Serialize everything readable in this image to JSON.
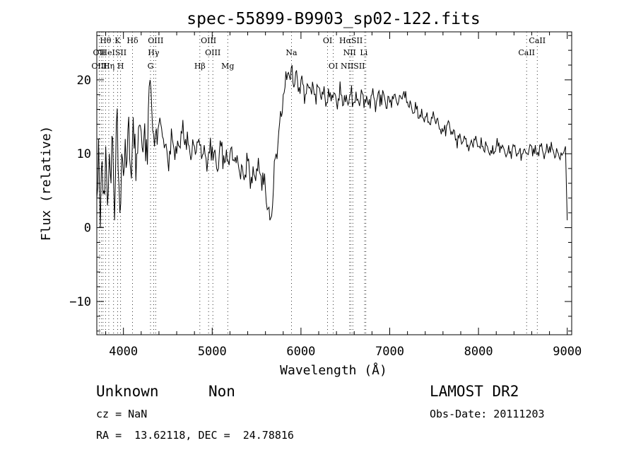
{
  "chart_data": {
    "type": "line",
    "title": "spec-55899-B9903_sp02-122.fits",
    "xlabel": "Wavelength (Å)",
    "ylabel": "Flux (relative)",
    "xlim": [
      3700,
      9050
    ],
    "ylim": [
      -14.5,
      26.5
    ],
    "xticks": [
      4000,
      5000,
      6000,
      7000,
      8000,
      9000
    ],
    "yticks": [
      -10,
      0,
      10,
      20
    ],
    "grid": false,
    "series": [
      {
        "x": [
          3700,
          3720,
          3740,
          3760,
          3780,
          3800,
          3820,
          3840,
          3860,
          3880,
          3900,
          3920,
          3940,
          3960,
          3980,
          4000,
          4020,
          4040,
          4060,
          4080,
          4100,
          4150,
          4200,
          4250,
          4300,
          4350,
          4400,
          4450,
          4500,
          4550,
          4600,
          4650,
          4700,
          4750,
          4800,
          4850,
          4900,
          4950,
          5000,
          5050,
          5100,
          5150,
          5200,
          5250,
          5300,
          5350,
          5400,
          5450,
          5500,
          5550,
          5600,
          5650,
          5680,
          5700,
          5720,
          5750,
          5780,
          5800,
          5820,
          5840,
          5860,
          5880,
          5900,
          5920,
          5940,
          5960,
          5980,
          6000,
          6050,
          6100,
          6150,
          6200,
          6250,
          6300,
          6350,
          6400,
          6450,
          6500,
          6550,
          6600,
          6650,
          6700,
          6750,
          6800,
          6850,
          6900,
          6950,
          7000,
          7050,
          7100,
          7150,
          7200,
          7250,
          7300,
          7350,
          7400,
          7450,
          7500,
          7550,
          7600,
          7650,
          7700,
          7750,
          7800,
          7850,
          7900,
          7950,
          8000,
          8050,
          8100,
          8150,
          8200,
          8250,
          8300,
          8350,
          8400,
          8450,
          8500,
          8550,
          8600,
          8650,
          8700,
          8750,
          8800,
          8850,
          8900,
          8950,
          8980,
          9000
        ],
        "y": [
          4,
          12,
          0,
          9,
          5,
          11,
          3,
          10,
          6,
          12,
          1,
          14,
          8,
          2,
          10,
          7,
          12,
          9,
          15,
          8,
          11,
          10,
          13,
          9,
          20,
          11,
          14,
          12,
          9,
          12,
          10,
          13,
          12,
          10,
          11,
          12,
          10,
          9,
          11,
          8,
          11,
          9,
          10,
          9,
          8,
          7,
          9,
          6,
          8,
          7,
          5,
          1,
          3,
          9,
          10,
          13,
          15,
          18,
          19,
          20,
          21,
          20,
          22,
          19,
          21,
          20,
          19,
          20,
          18,
          19,
          18,
          19,
          18,
          17,
          18,
          17,
          18,
          17,
          18,
          17,
          17,
          18,
          17,
          18,
          17,
          18,
          17,
          17,
          18,
          17,
          18,
          17,
          16,
          16,
          15,
          15,
          14,
          15,
          14,
          13,
          14,
          13,
          12,
          12,
          12,
          11,
          12,
          11,
          11,
          11,
          10,
          11,
          11,
          10,
          10,
          11,
          10,
          10,
          10,
          11,
          10,
          11,
          10,
          11,
          10,
          10,
          10,
          11,
          1
        ]
      }
    ],
    "line_markers": [
      {
        "label": "Hθ",
        "x": 3798,
        "row": 0
      },
      {
        "label": "K",
        "x": 3934,
        "row": 0
      },
      {
        "label": "Hδ",
        "x": 4102,
        "row": 0
      },
      {
        "label": "OIII",
        "x": 4363,
        "row": 0
      },
      {
        "label": "OIII",
        "x": 4959,
        "row": 0
      },
      {
        "label": "OI",
        "x": 6300,
        "row": 0
      },
      {
        "label": "HαSII",
        "x": 6563,
        "row": 0
      },
      {
        "label": "CaII",
        "x": 8662,
        "row": 0
      },
      {
        "label": "OII",
        "x": 3727,
        "row": 1
      },
      {
        "label": "HeISII",
        "x": 3889,
        "row": 1
      },
      {
        "label": "Hγ",
        "x": 4340,
        "row": 1
      },
      {
        "label": "OIII",
        "x": 5007,
        "row": 1
      },
      {
        "label": "Na",
        "x": 5893,
        "row": 1
      },
      {
        "label": "NII",
        "x": 6548,
        "row": 1
      },
      {
        "label": "Li",
        "x": 6708,
        "row": 1
      },
      {
        "label": "CaII",
        "x": 8542,
        "row": 1
      },
      {
        "label": "OIII",
        "x": 3727,
        "row": 2
      },
      {
        "label": "Hη",
        "x": 3835,
        "row": 2
      },
      {
        "label": "H",
        "x": 3968,
        "row": 2
      },
      {
        "label": "G",
        "x": 4305,
        "row": 2
      },
      {
        "label": "Hβ",
        "x": 4861,
        "row": 2
      },
      {
        "label": "Mg",
        "x": 5175,
        "row": 2
      },
      {
        "label": "OI",
        "x": 6364,
        "row": 2
      },
      {
        "label": "NIISII",
        "x": 6584,
        "row": 2
      }
    ],
    "dotted_lines_x": [
      3727,
      3750,
      3770,
      3798,
      3835,
      3889,
      3934,
      3968,
      4102,
      4305,
      4340,
      4363,
      4861,
      4959,
      5007,
      5175,
      5893,
      6300,
      6364,
      6548,
      6563,
      6584,
      6717,
      6731,
      8542,
      8662
    ]
  },
  "info": {
    "class": "Unknown",
    "subclass": "Non",
    "survey": "LAMOST DR2",
    "cz": "cz = NaN",
    "obs_date": "Obs-Date: 20111203",
    "coords": "RA =  13.62118, DEC =  24.78816"
  }
}
